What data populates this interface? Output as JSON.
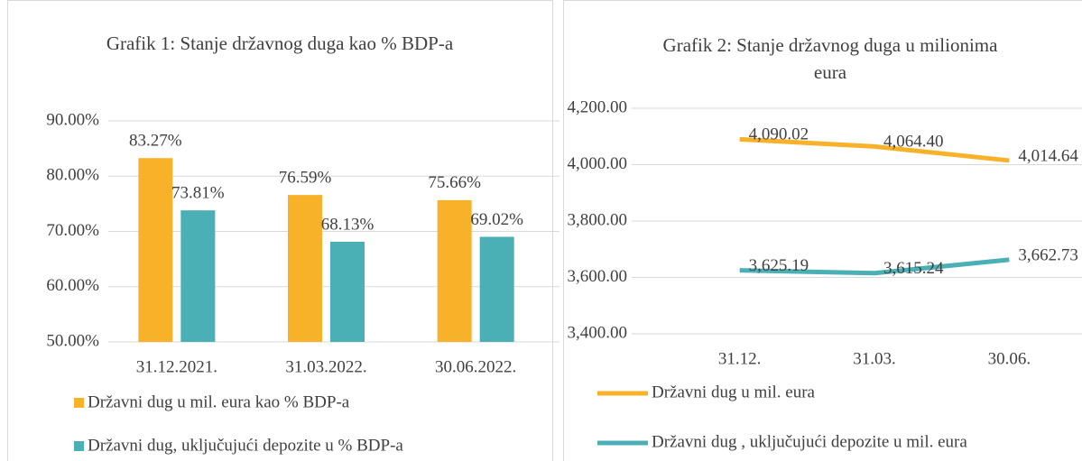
{
  "chart_data": [
    {
      "type": "bar",
      "title": "Grafik 1: Stanje državnog duga kao % BDP-a",
      "categories": [
        "31.12.2021.",
        "31.03.2022.",
        "30.06.2022."
      ],
      "series": [
        {
          "name": "Državni dug u mil. eura kao % BDP-a",
          "color": "#f7b22a",
          "values": [
            83.27,
            76.59,
            75.66
          ],
          "value_labels": [
            "83.27%",
            "76.59%",
            "75.66%"
          ]
        },
        {
          "name": "Državni dug, uključujući depozite u % BDP-a",
          "color": "#4ab0b5",
          "values": [
            73.81,
            68.13,
            69.02
          ],
          "value_labels": [
            "73.81%",
            "68.13%",
            "69.02%"
          ]
        }
      ],
      "ylim": [
        50,
        90
      ],
      "yticks": [
        {
          "value": 50,
          "label": "50.00%"
        },
        {
          "value": 60,
          "label": "60.00%"
        },
        {
          "value": 70,
          "label": "70.00%"
        },
        {
          "value": 80,
          "label": "80.00%"
        },
        {
          "value": 90,
          "label": "90.00%"
        }
      ],
      "grid": true
    },
    {
      "type": "line",
      "title": "Grafik 2: Stanje državnog duga u milionima eura",
      "categories": [
        "31.12.",
        "31.03.",
        "30.06."
      ],
      "series": [
        {
          "name": "Državni dug u mil. eura",
          "color": "#f7b22a",
          "values": [
            4090.02,
            4064.4,
            4014.64
          ],
          "value_labels": [
            "4,090.02",
            "4,064.40",
            "4,014.64"
          ]
        },
        {
          "name": "Državni dug , uključujući depozite u mil. eura",
          "color": "#4ab0b5",
          "values": [
            3625.19,
            3615.24,
            3662.73
          ],
          "value_labels": [
            "3,625.19",
            "3,615.24",
            "3,662.73"
          ]
        }
      ],
      "ylim": [
        3400,
        4200
      ],
      "yticks": [
        {
          "value": 3400,
          "label": "3,400.00"
        },
        {
          "value": 3600,
          "label": "3,600.00"
        },
        {
          "value": 3800,
          "label": "3,800.00"
        },
        {
          "value": 4000,
          "label": "4,000.00"
        },
        {
          "value": 4200,
          "label": "4,200.00"
        }
      ],
      "grid": true
    }
  ]
}
